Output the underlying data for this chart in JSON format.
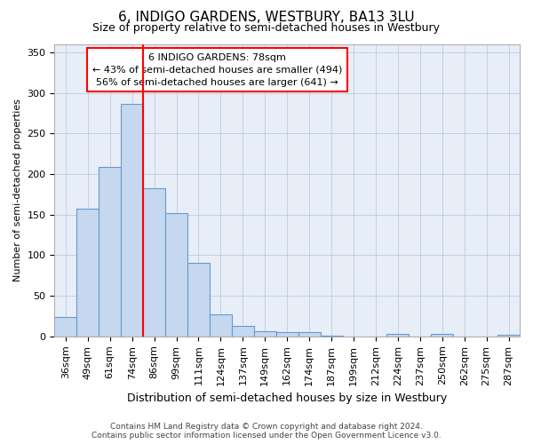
{
  "title": "6, INDIGO GARDENS, WESTBURY, BA13 3LU",
  "subtitle": "Size of property relative to semi-detached houses in Westbury",
  "xlabel": "Distribution of semi-detached houses by size in Westbury",
  "ylabel": "Number of semi-detached properties",
  "categories": [
    "36sqm",
    "49sqm",
    "61sqm",
    "74sqm",
    "86sqm",
    "99sqm",
    "111sqm",
    "124sqm",
    "137sqm",
    "149sqm",
    "162sqm",
    "174sqm",
    "187sqm",
    "199sqm",
    "212sqm",
    "224sqm",
    "237sqm",
    "250sqm",
    "262sqm",
    "275sqm",
    "287sqm"
  ],
  "values": [
    24,
    157,
    209,
    287,
    183,
    152,
    91,
    27,
    13,
    6,
    5,
    5,
    1,
    0,
    0,
    3,
    0,
    3,
    0,
    0,
    2
  ],
  "bar_color": "#c5d8f0",
  "bar_edge_color": "#6699cc",
  "grid_color": "#bbccdd",
  "background_color": "#e8eef8",
  "annotation_line1": "6 INDIGO GARDENS: 78sqm",
  "annotation_line2": "← 43% of semi-detached houses are smaller (494)",
  "annotation_line3": "56% of semi-detached houses are larger (641) →",
  "red_line_x": 3.5,
  "ylim": [
    0,
    360
  ],
  "yticks": [
    0,
    50,
    100,
    150,
    200,
    250,
    300,
    350
  ],
  "title_fontsize": 11,
  "subtitle_fontsize": 9,
  "xlabel_fontsize": 9,
  "ylabel_fontsize": 8,
  "tick_fontsize": 8,
  "footer_line1": "Contains HM Land Registry data © Crown copyright and database right 2024.",
  "footer_line2": "Contains public sector information licensed under the Open Government Licence v3.0."
}
